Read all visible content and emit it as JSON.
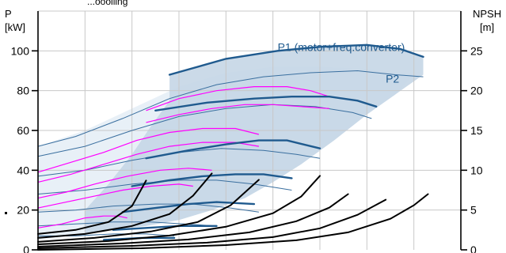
{
  "header": {
    "top_text": "...ooolling"
  },
  "colors": {
    "power_curve": "#1f5a8e",
    "power_region_fill": "#c5d6e6",
    "region_fill": "#e8f0f7",
    "thin_blue": "#3a6f9f",
    "magenta": "#ff00ff",
    "npsh": "#000000",
    "grid": "#c8c8c8",
    "label": "#1f5a8e"
  },
  "chart_data": {
    "type": "line",
    "left_axis": {
      "label_line1": "P",
      "label_line2": "[kW]",
      "ylim": [
        0,
        120
      ],
      "ticks": [
        0,
        20,
        40,
        60,
        80,
        100
      ]
    },
    "right_axis": {
      "label_line1": "NPSH",
      "label_line2": "[m]",
      "ylim": [
        0,
        30
      ],
      "ticks": [
        0,
        5,
        10,
        15,
        20,
        25
      ]
    },
    "xlim": [
      0,
      9
    ],
    "grid": true,
    "annotations": [
      {
        "text": "P1 (motor+freq.converter)",
        "x": 5.1,
        "y": 100
      },
      {
        "text": "P2",
        "x": 7.4,
        "y": 84
      }
    ],
    "region": {
      "upper": [
        [
          2.8,
          88
        ],
        [
          4.0,
          96
        ],
        [
          5.1,
          100
        ],
        [
          6.0,
          103
        ],
        [
          7.0,
          103
        ],
        [
          7.8,
          101
        ],
        [
          8.2,
          97
        ],
        [
          8.2,
          88
        ]
      ],
      "lower": [
        [
          8.2,
          88
        ],
        [
          7.6,
          78
        ],
        [
          7.0,
          68
        ],
        [
          6.3,
          55
        ],
        [
          5.6,
          43
        ],
        [
          5.0,
          34
        ],
        [
          4.4,
          26
        ],
        [
          3.7,
          20
        ],
        [
          3.0,
          15
        ],
        [
          2.3,
          12
        ],
        [
          1.6,
          10
        ],
        [
          1.0,
          8
        ],
        [
          1.0,
          20
        ],
        [
          1.5,
          33
        ],
        [
          2.0,
          48
        ],
        [
          2.4,
          62
        ],
        [
          2.8,
          75
        ]
      ]
    },
    "region_light": {
      "top": [
        [
          0,
          52
        ],
        [
          1,
          60
        ],
        [
          2,
          71
        ],
        [
          3,
          82
        ],
        [
          4,
          89
        ],
        [
          5,
          92
        ],
        [
          6,
          92
        ],
        [
          7,
          91
        ],
        [
          8,
          88
        ]
      ],
      "bottom": [
        [
          8,
          88
        ],
        [
          7.6,
          78
        ],
        [
          7.0,
          68
        ],
        [
          6.3,
          55
        ],
        [
          5.6,
          43
        ],
        [
          5.0,
          34
        ],
        [
          4.4,
          26
        ],
        [
          3.7,
          20
        ],
        [
          3.0,
          15
        ],
        [
          2.3,
          12
        ],
        [
          1.6,
          10
        ],
        [
          1.0,
          8
        ],
        [
          0,
          5
        ]
      ]
    },
    "power_curves": [
      {
        "x": [
          2.8,
          4.0,
          5.1,
          6.0,
          7.0,
          7.7,
          8.2
        ],
        "y": [
          88,
          96,
          100,
          102,
          103,
          101,
          97
        ]
      },
      {
        "x": [
          2.5,
          3.6,
          4.6,
          5.4,
          6.2,
          6.8,
          7.2
        ],
        "y": [
          70,
          74,
          76,
          77,
          77,
          75,
          72
        ]
      },
      {
        "x": [
          2.3,
          3.2,
          4.0,
          4.7,
          5.3,
          6.0
        ],
        "y": [
          46,
          50,
          53,
          55,
          55,
          51
        ]
      },
      {
        "x": [
          2.0,
          2.8,
          3.5,
          4.2,
          4.8,
          5.4
        ],
        "y": [
          32,
          35,
          37,
          38,
          38,
          36
        ]
      },
      {
        "x": [
          1.8,
          2.5,
          3.2,
          3.8,
          4.6
        ],
        "y": [
          19,
          21,
          23,
          24,
          23
        ]
      },
      {
        "x": [
          1.6,
          2.3,
          3.0,
          3.8
        ],
        "y": [
          10,
          11,
          12,
          12
        ]
      },
      {
        "x": [
          1.4,
          2.2,
          2.9
        ],
        "y": [
          5,
          6,
          6
        ]
      }
    ],
    "thin_blue_curves": [
      {
        "x": [
          0,
          0.8,
          1.8,
          2.8,
          3.8,
          4.8,
          5.8,
          6.8,
          7.6,
          8.2
        ],
        "y": [
          52,
          57,
          66,
          76,
          83,
          87,
          89,
          90,
          88,
          87
        ]
      },
      {
        "x": [
          0,
          1.0,
          2.0,
          3.0,
          4.0,
          5.0,
          5.9,
          6.7,
          7.1
        ],
        "y": [
          47,
          52,
          60,
          67,
          71,
          73,
          72,
          69,
          66
        ]
      },
      {
        "x": [
          0,
          1.0,
          2.0,
          3.0,
          3.9,
          4.8,
          5.5,
          6.0
        ],
        "y": [
          37,
          40,
          45,
          49,
          51,
          50,
          48,
          46
        ]
      },
      {
        "x": [
          0,
          1.0,
          2.0,
          3.0,
          3.8,
          4.6,
          5.4
        ],
        "y": [
          28,
          30,
          33,
          35,
          35,
          33,
          30
        ]
      },
      {
        "x": [
          0,
          0.8,
          1.6,
          2.5,
          3.3,
          4.1,
          4.7
        ],
        "y": [
          19,
          20,
          22,
          23,
          23,
          21,
          19
        ]
      },
      {
        "x": [
          0,
          0.8,
          1.6,
          2.4,
          3.1,
          3.8
        ],
        "y": [
          12,
          13,
          14,
          14,
          13,
          12
        ]
      },
      {
        "x": [
          0,
          0.8,
          1.6,
          2.3,
          2.9
        ],
        "y": [
          7,
          7,
          8,
          8,
          7
        ]
      }
    ],
    "magenta_curves": [
      {
        "x": [
          2.3,
          3.0,
          3.8,
          4.6,
          5.3,
          5.8,
          6.2
        ],
        "y": [
          70,
          76,
          80,
          82,
          82,
          80,
          77
        ]
      },
      {
        "x": [
          2.3,
          3.0,
          3.7,
          4.4,
          5.0,
          5.6,
          6.2
        ],
        "y": [
          64,
          68,
          71,
          73,
          73,
          72,
          71
        ]
      },
      {
        "x": [
          0,
          0.7,
          1.4,
          2.1,
          2.8,
          3.5,
          4.2,
          4.7
        ],
        "y": [
          39,
          44,
          49,
          55,
          59,
          61,
          61,
          58
        ]
      },
      {
        "x": [
          0,
          0.7,
          1.4,
          2.1,
          2.8,
          3.5,
          4.2,
          4.7
        ],
        "y": [
          34,
          38,
          43,
          48,
          52,
          54,
          54,
          52
        ]
      },
      {
        "x": [
          0,
          0.6,
          1.2,
          1.9,
          2.6,
          3.2,
          3.7
        ],
        "y": [
          26,
          29,
          33,
          37,
          40,
          41,
          40
        ]
      },
      {
        "x": [
          0,
          0.6,
          1.2,
          1.8,
          2.4,
          3.0,
          3.3
        ],
        "y": [
          21,
          24,
          27,
          30,
          32,
          33,
          32
        ]
      },
      {
        "x": [
          0,
          0.5,
          1.0,
          1.4,
          1.7,
          1.9
        ],
        "y": [
          11,
          13,
          16,
          17,
          17,
          16
        ]
      }
    ],
    "npsh_curves": [
      {
        "x": [
          0,
          0.8,
          1.5,
          2.0,
          2.3
        ],
        "y": [
          2.0,
          2.5,
          3.5,
          5.5,
          8.7
        ]
      },
      {
        "x": [
          0,
          1.0,
          2.0,
          2.8,
          3.3,
          3.7
        ],
        "y": [
          1.5,
          2.0,
          3.0,
          4.5,
          6.8,
          9.6
        ]
      },
      {
        "x": [
          0,
          1.2,
          2.4,
          3.4,
          4.1,
          4.7
        ],
        "y": [
          1.0,
          1.5,
          2.3,
          3.5,
          5.6,
          8.8
        ]
      },
      {
        "x": [
          0,
          1.5,
          2.8,
          4.0,
          5.0,
          5.6,
          6.0
        ],
        "y": [
          0.7,
          1.1,
          1.8,
          2.9,
          4.6,
          6.7,
          9.3
        ]
      },
      {
        "x": [
          0,
          1.8,
          3.2,
          4.5,
          5.5,
          6.2,
          6.6
        ],
        "y": [
          0.4,
          0.8,
          1.3,
          2.2,
          3.6,
          5.3,
          7.0
        ]
      },
      {
        "x": [
          0,
          2.0,
          3.6,
          5.0,
          6.0,
          6.8,
          7.4
        ],
        "y": [
          0.2,
          0.5,
          0.9,
          1.6,
          2.7,
          4.4,
          6.3
        ]
      },
      {
        "x": [
          0,
          2.2,
          4.0,
          5.5,
          6.6,
          7.5,
          8.0,
          8.3
        ],
        "y": [
          0.0,
          0.2,
          0.6,
          1.2,
          2.2,
          3.9,
          5.6,
          7.0
        ]
      }
    ]
  }
}
